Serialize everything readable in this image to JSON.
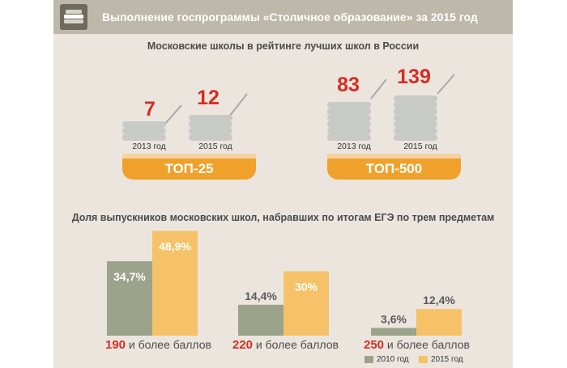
{
  "header": {
    "title": "Выполнение госпрограммы «Столичное образование» за 2015 год",
    "icon": "books-icon"
  },
  "colors": {
    "header_bg": "#bdb8aa",
    "panel_bg": "#ebe5de",
    "accent_red": "#d62d23",
    "badge_orange": "#f0a12b",
    "bar_2010": "#9ba38a",
    "bar_2015": "#f5c267"
  },
  "rating": {
    "title": "Московские школы в рейтинге лучших школ в России",
    "groups": [
      {
        "badge": "ТОП-25",
        "items": [
          {
            "year": "2013 год",
            "value": "7"
          },
          {
            "year": "2015 год",
            "value": "12"
          }
        ]
      },
      {
        "badge": "ТОП-500",
        "items": [
          {
            "year": "2013 год",
            "value": "83"
          },
          {
            "year": "2015 год",
            "value": "139"
          }
        ]
      }
    ]
  },
  "chart_data": {
    "type": "bar",
    "title": "Доля выпускников московских школ, набравших по итогам ЕГЭ по  трем предметам",
    "categories": [
      "190 и более баллов",
      "220 и более баллов",
      "250 и более баллов"
    ],
    "category_parts": [
      {
        "num": "190",
        "text": "и более баллов"
      },
      {
        "num": "220",
        "text": "и более баллов"
      },
      {
        "num": "250",
        "text": "и более баллов"
      }
    ],
    "series": [
      {
        "name": "2010 год",
        "values": [
          34.7,
          14.4,
          3.6
        ],
        "labels": [
          "34,7%",
          "14,4%",
          "3,6%"
        ]
      },
      {
        "name": "2015 год",
        "values": [
          48.9,
          30,
          12.4
        ],
        "labels": [
          "48,9%",
          "30%",
          "12,4%"
        ]
      }
    ],
    "ylim": [
      0,
      50
    ],
    "legend": "bottom-right",
    "grid": false
  }
}
